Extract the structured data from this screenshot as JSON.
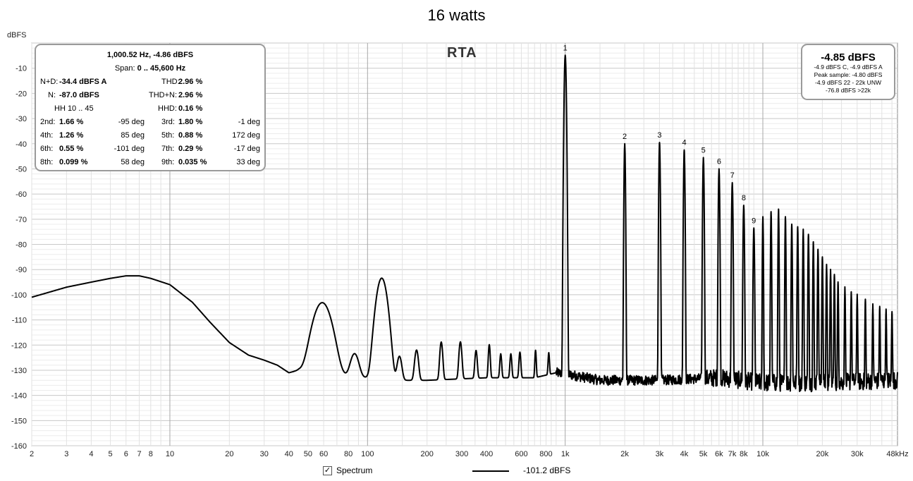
{
  "chart_data": {
    "type": "line",
    "title": "16 watts",
    "ylabel": "dBFS",
    "xscale": "log",
    "xlim": [
      2,
      48000
    ],
    "ylim": [
      -160,
      0
    ],
    "grid": true,
    "overlay_label": "RTA",
    "x_ticks": [
      {
        "v": 2,
        "t": "2"
      },
      {
        "v": 3,
        "t": "3"
      },
      {
        "v": 4,
        "t": "4"
      },
      {
        "v": 5,
        "t": "5"
      },
      {
        "v": 6,
        "t": "6"
      },
      {
        "v": 7,
        "t": "7"
      },
      {
        "v": 8,
        "t": "8"
      },
      {
        "v": 10,
        "t": "10"
      },
      {
        "v": 20,
        "t": "20"
      },
      {
        "v": 30,
        "t": "30"
      },
      {
        "v": 40,
        "t": "40"
      },
      {
        "v": 50,
        "t": "50"
      },
      {
        "v": 60,
        "t": "60"
      },
      {
        "v": 80,
        "t": "80"
      },
      {
        "v": 100,
        "t": "100"
      },
      {
        "v": 200,
        "t": "200"
      },
      {
        "v": 300,
        "t": "300"
      },
      {
        "v": 400,
        "t": "400"
      },
      {
        "v": 600,
        "t": "600"
      },
      {
        "v": 800,
        "t": "800"
      },
      {
        "v": 1000,
        "t": "1k"
      },
      {
        "v": 2000,
        "t": "2k"
      },
      {
        "v": 3000,
        "t": "3k"
      },
      {
        "v": 4000,
        "t": "4k"
      },
      {
        "v": 5000,
        "t": "5k"
      },
      {
        "v": 6000,
        "t": "6k"
      },
      {
        "v": 7000,
        "t": "7k"
      },
      {
        "v": 8000,
        "t": "8k"
      },
      {
        "v": 10000,
        "t": "10k"
      },
      {
        "v": 20000,
        "t": "20k"
      },
      {
        "v": 30000,
        "t": "30k"
      },
      {
        "v": 48000,
        "t": "48kHz"
      }
    ],
    "y_ticks": [
      {
        "v": -10,
        "t": "-10"
      },
      {
        "v": -20,
        "t": "-20"
      },
      {
        "v": -30,
        "t": "-30"
      },
      {
        "v": -40,
        "t": "-40"
      },
      {
        "v": -50,
        "t": "-50"
      },
      {
        "v": -60,
        "t": "-60"
      },
      {
        "v": -70,
        "t": "-70"
      },
      {
        "v": -80,
        "t": "-80"
      },
      {
        "v": -90,
        "t": "-90"
      },
      {
        "v": -100,
        "t": "-100"
      },
      {
        "v": -110,
        "t": "-110"
      },
      {
        "v": -120,
        "t": "-120"
      },
      {
        "v": -130,
        "t": "-130"
      },
      {
        "v": -140,
        "t": "-140"
      },
      {
        "v": -150,
        "t": "-150"
      },
      {
        "v": -160,
        "t": "-160"
      }
    ],
    "series": [
      {
        "name": "Spectrum",
        "color": "#000000",
        "noise_floor": [
          [
            2,
            -101
          ],
          [
            3,
            -97
          ],
          [
            4,
            -95
          ],
          [
            5,
            -93.5
          ],
          [
            6,
            -92.5
          ],
          [
            7,
            -92.5
          ],
          [
            8,
            -93.5
          ],
          [
            10,
            -96
          ],
          [
            13,
            -103
          ],
          [
            16,
            -111
          ],
          [
            20,
            -119
          ],
          [
            25,
            -124
          ],
          [
            30,
            -126
          ],
          [
            35,
            -128
          ],
          [
            40,
            -131
          ],
          [
            45,
            -130
          ],
          [
            50,
            -131
          ],
          [
            55,
            -131
          ],
          [
            70,
            -132
          ],
          [
            90,
            -133
          ],
          [
            110,
            -133
          ],
          [
            130,
            -134
          ],
          [
            200,
            -134
          ],
          [
            400,
            -133
          ],
          [
            700,
            -133
          ],
          [
            900,
            -131
          ],
          [
            1100,
            -132
          ],
          [
            1500,
            -134
          ],
          [
            3000,
            -134
          ],
          [
            6000,
            -133
          ],
          [
            10000,
            -135
          ],
          [
            20000,
            -135
          ],
          [
            48000,
            -134
          ]
        ],
        "peaks": [
          {
            "f": 59,
            "db": -103.5,
            "w": 0.035
          },
          {
            "f": 86,
            "db": -127,
            "w": 0.018
          },
          {
            "f": 118,
            "db": -93.5,
            "w": 0.02
          },
          {
            "f": 145,
            "db": -128,
            "w": 0.01
          },
          {
            "f": 177,
            "db": -124.5,
            "w": 0.008
          },
          {
            "f": 236,
            "db": -120.5,
            "w": 0.006
          },
          {
            "f": 295,
            "db": -120.5,
            "w": 0.006
          },
          {
            "f": 354,
            "db": -125,
            "w": 0.005
          },
          {
            "f": 413,
            "db": -122,
            "w": 0.004
          },
          {
            "f": 472,
            "db": -127,
            "w": 0.004
          },
          {
            "f": 531,
            "db": -127,
            "w": 0.004
          },
          {
            "f": 590,
            "db": -126,
            "w": 0.004
          },
          {
            "f": 708,
            "db": -125,
            "w": 0.003
          },
          {
            "f": 826,
            "db": -127,
            "w": 0.003
          },
          {
            "f": 1000.52,
            "db": -4.86,
            "w": 0.003
          },
          {
            "f": 2001,
            "db": -40,
            "w": 0.002
          },
          {
            "f": 3001.6,
            "db": -39.5,
            "w": 0.002
          },
          {
            "f": 4002,
            "db": -42.5,
            "w": 0.002
          },
          {
            "f": 5002.6,
            "db": -45.5,
            "w": 0.002
          },
          {
            "f": 6003,
            "db": -50,
            "w": 0.002
          },
          {
            "f": 7003.6,
            "db": -55.5,
            "w": 0.002
          },
          {
            "f": 8004,
            "db": -64.5,
            "w": 0.002
          },
          {
            "f": 9004.7,
            "db": -73.5,
            "w": 0.002
          },
          {
            "f": 10005,
            "db": -69,
            "w": 0.0015
          },
          {
            "f": 11006,
            "db": -67,
            "w": 0.0015
          },
          {
            "f": 12006,
            "db": -66,
            "w": 0.0015
          },
          {
            "f": 13007,
            "db": -69,
            "w": 0.0015
          },
          {
            "f": 14007,
            "db": -72,
            "w": 0.0015
          },
          {
            "f": 15008,
            "db": -73,
            "w": 0.0015
          },
          {
            "f": 16008,
            "db": -74,
            "w": 0.0015
          },
          {
            "f": 17009,
            "db": -76,
            "w": 0.0015
          },
          {
            "f": 18009,
            "db": -79,
            "w": 0.0015
          },
          {
            "f": 19010,
            "db": -82,
            "w": 0.0015
          },
          {
            "f": 20010,
            "db": -85,
            "w": 0.0015
          },
          {
            "f": 21011,
            "db": -88,
            "w": 0.0015
          },
          {
            "f": 22011,
            "db": -90,
            "w": 0.0015
          },
          {
            "f": 23012,
            "db": -92,
            "w": 0.0015
          },
          {
            "f": 24013,
            "db": -95,
            "w": 0.0015
          },
          {
            "f": 26014,
            "db": -97,
            "w": 0.0015
          },
          {
            "f": 28015,
            "db": -99,
            "w": 0.0015
          },
          {
            "f": 30016,
            "db": -100,
            "w": 0.0015
          },
          {
            "f": 33017,
            "db": -102,
            "w": 0.0015
          },
          {
            "f": 36019,
            "db": -104,
            "w": 0.0015
          },
          {
            "f": 39020,
            "db": -105,
            "w": 0.0015
          },
          {
            "f": 42021,
            "db": -106,
            "w": 0.0015
          },
          {
            "f": 45023,
            "db": -107,
            "w": 0.0015
          }
        ]
      }
    ],
    "harmonic_labels": [
      {
        "f": 1000.52,
        "db": -4.86,
        "t": "1"
      },
      {
        "f": 2001,
        "db": -40,
        "t": "2"
      },
      {
        "f": 3001.6,
        "db": -39.5,
        "t": "3"
      },
      {
        "f": 4002,
        "db": -42.5,
        "t": "4"
      },
      {
        "f": 5002.6,
        "db": -45.5,
        "t": "5"
      },
      {
        "f": 6003,
        "db": -50,
        "t": "6"
      },
      {
        "f": 7003.6,
        "db": -55.5,
        "t": "7"
      },
      {
        "f": 8004,
        "db": -64.5,
        "t": "8"
      },
      {
        "f": 9004.7,
        "db": -73.5,
        "t": "9"
      }
    ]
  },
  "stats": {
    "peak": "1,000.52 Hz, -4.86 dBFS",
    "span_label": "Span:",
    "span": "0 .. 45,600 Hz",
    "nd_label": "N+D:",
    "nd": "-34.4 dBFS A",
    "thd_label": "THD:",
    "thd": "2.96 %",
    "n_label": "N:",
    "n": "-87.0 dBFS",
    "thdn_label": "THD+N:",
    "thdn": "2.96 %",
    "hh": "HH 10 .. 45",
    "hhd_label": "HHD:",
    "hhd": "0.16 %",
    "rows": [
      {
        "l1": "2nd:",
        "v1": "1.66 %",
        "d1": "-95 deg",
        "l2": "3rd:",
        "v2": "1.80 %",
        "d2": "-1 deg"
      },
      {
        "l1": "4th:",
        "v1": "1.26 %",
        "d1": "85 deg",
        "l2": "5th:",
        "v2": "0.88 %",
        "d2": "172 deg"
      },
      {
        "l1": "6th:",
        "v1": "0.55 %",
        "d1": "-101 deg",
        "l2": "7th:",
        "v2": "0.29 %",
        "d2": "-17 deg"
      },
      {
        "l1": "8th:",
        "v1": "0.099 %",
        "d1": "58 deg",
        "l2": "9th:",
        "v2": "0.035 %",
        "d2": "33 deg"
      }
    ]
  },
  "level": {
    "big": "-4.85 dBFS",
    "lines": [
      "-4.9 dBFS C, -4.9 dBFS A",
      "Peak sample: -4.80 dBFS",
      "-4.9 dBFS 22 - 22k UNW",
      "-76.8 dBFS >22k"
    ]
  },
  "legend": {
    "checkbox_mark": "✓",
    "label": "Spectrum",
    "value": "-101.2 dBFS"
  }
}
